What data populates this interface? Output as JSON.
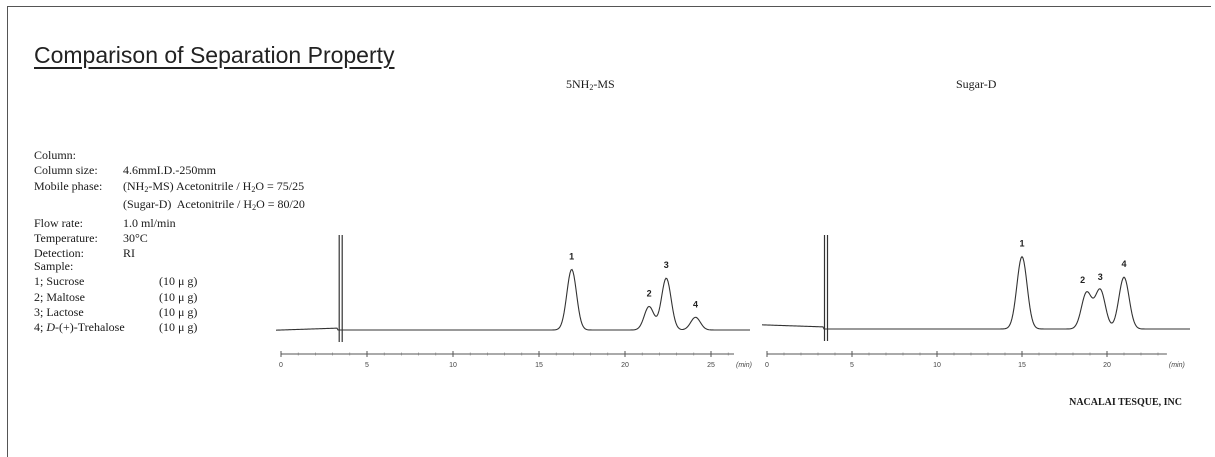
{
  "header": {
    "title": "Comparison of Separation Property"
  },
  "conditions": [
    {
      "label": "Column:",
      "value": ""
    },
    {
      "label": "Column size:",
      "value": "4.6mmI.D.-250mm"
    },
    {
      "label": "Mobile phase:",
      "value": "(NH2-MS) Acetonitrile / H2O = 75/25"
    },
    {
      "label": "",
      "value": "(Sugar-D)  Acetonitrile / H2O = 80/20"
    },
    {
      "label": "Flow rate:",
      "value": "1.0 ml/min"
    },
    {
      "label": "Temperature:",
      "value": "30°C"
    },
    {
      "label": "Detection:",
      "value": "RI"
    }
  ],
  "sample": {
    "label": "Sample:",
    "items": [
      {
        "name": "1; Sucrose",
        "amount": "(10 μ g)"
      },
      {
        "name": "2; Maltose",
        "amount": "(10 μ g)"
      },
      {
        "name": "3; Lactose",
        "amount": "(10 μ g)"
      },
      {
        "name": "4; D-(+)-Trehalose",
        "amount": "(10 μ g)"
      }
    ]
  },
  "footer": {
    "company": "NACALAI TESQUE, INC"
  },
  "chart_data": [
    {
      "type": "line",
      "title": "5NH2-MS",
      "xunit": "(min)",
      "xlim": [
        0,
        27.5
      ],
      "xticks": [
        0,
        5,
        10,
        15,
        20,
        25
      ],
      "peaks": [
        {
          "label": "1",
          "rt": 16.9,
          "height": 0.62
        },
        {
          "label": "2",
          "rt": 21.4,
          "height": 0.24
        },
        {
          "label": "3",
          "rt": 22.4,
          "height": 0.53
        },
        {
          "label": "4",
          "rt": 24.1,
          "height": 0.13
        }
      ],
      "solvent_front": 3.5
    },
    {
      "type": "line",
      "title": "Sugar-D",
      "xunit": "(min)",
      "xlim": [
        0,
        24.7
      ],
      "xticks": [
        0,
        5,
        10,
        15,
        20
      ],
      "peaks": [
        {
          "label": "1",
          "rt": 15.0,
          "height": 0.74
        },
        {
          "label": "2",
          "rt": 18.8,
          "height": 0.37
        },
        {
          "label": "3",
          "rt": 19.6,
          "height": 0.4
        },
        {
          "label": "4",
          "rt": 21.0,
          "height": 0.53
        }
      ],
      "solvent_front": 3.5
    }
  ]
}
